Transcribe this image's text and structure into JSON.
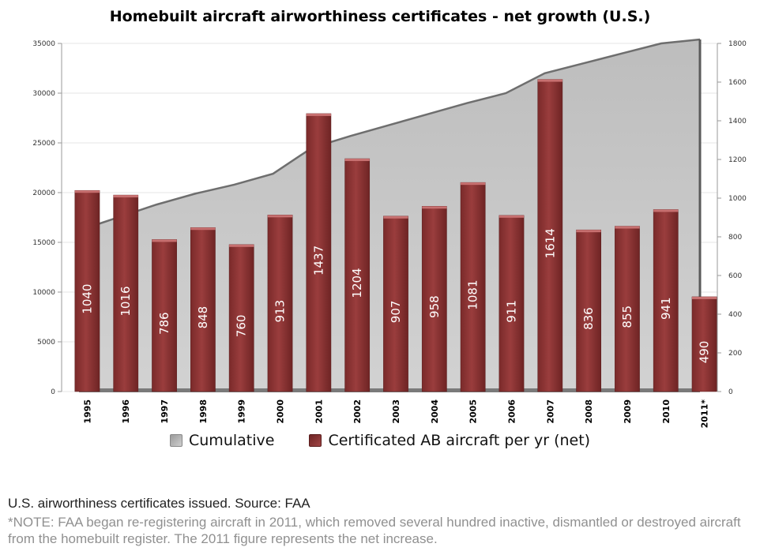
{
  "chart_data": {
    "type": "bar",
    "title": "Homebuilt aircraft airworthiness certificates - net growth (U.S.)",
    "categories": [
      "1995",
      "1996",
      "1997",
      "1998",
      "1999",
      "2000",
      "2001",
      "2002",
      "2003",
      "2004",
      "2005",
      "2006",
      "2007",
      "2008",
      "2009",
      "2010",
      "2011*"
    ],
    "series": [
      {
        "name": "Cumulative",
        "type": "area",
        "axis": "left",
        "color": "#c8c8c8",
        "values": [
          16200,
          17500,
          18800,
          19900,
          20800,
          21900,
          24500,
          25700,
          26800,
          27900,
          29000,
          30000,
          32000,
          33000,
          34000,
          35000,
          35400
        ]
      },
      {
        "name": "Certificated AB aircraft per yr (net)",
        "type": "bar",
        "axis": "right",
        "color": "#8b3535",
        "values": [
          1040,
          1016,
          786,
          848,
          760,
          913,
          1437,
          1204,
          907,
          958,
          1081,
          911,
          1614,
          836,
          855,
          941,
          490
        ]
      }
    ],
    "left_axis": {
      "ylim": [
        0,
        35000
      ],
      "ticks": [
        "0",
        "5000",
        "10000",
        "15000",
        "20000",
        "25000",
        "30000",
        "35000"
      ]
    },
    "right_axis": {
      "ylim": [
        0,
        1800
      ],
      "ticks": [
        "0",
        "200",
        "400",
        "600",
        "800",
        "1000",
        "1200",
        "1400",
        "1600",
        "1800"
      ]
    },
    "grid": true,
    "legend_position": "bottom"
  },
  "legend": {
    "cumulative_label": "Cumulative",
    "bars_label": "Certificated AB aircraft per yr (net)"
  },
  "footer": {
    "source": "U.S. airworthiness certificates issued. Source: FAA",
    "note": "*NOTE: FAA began re-registering aircraft in 2011, which removed several hundred inactive, dismantled or destroyed aircraft from the homebuilt register. The 2011 figure represents the net increase."
  }
}
